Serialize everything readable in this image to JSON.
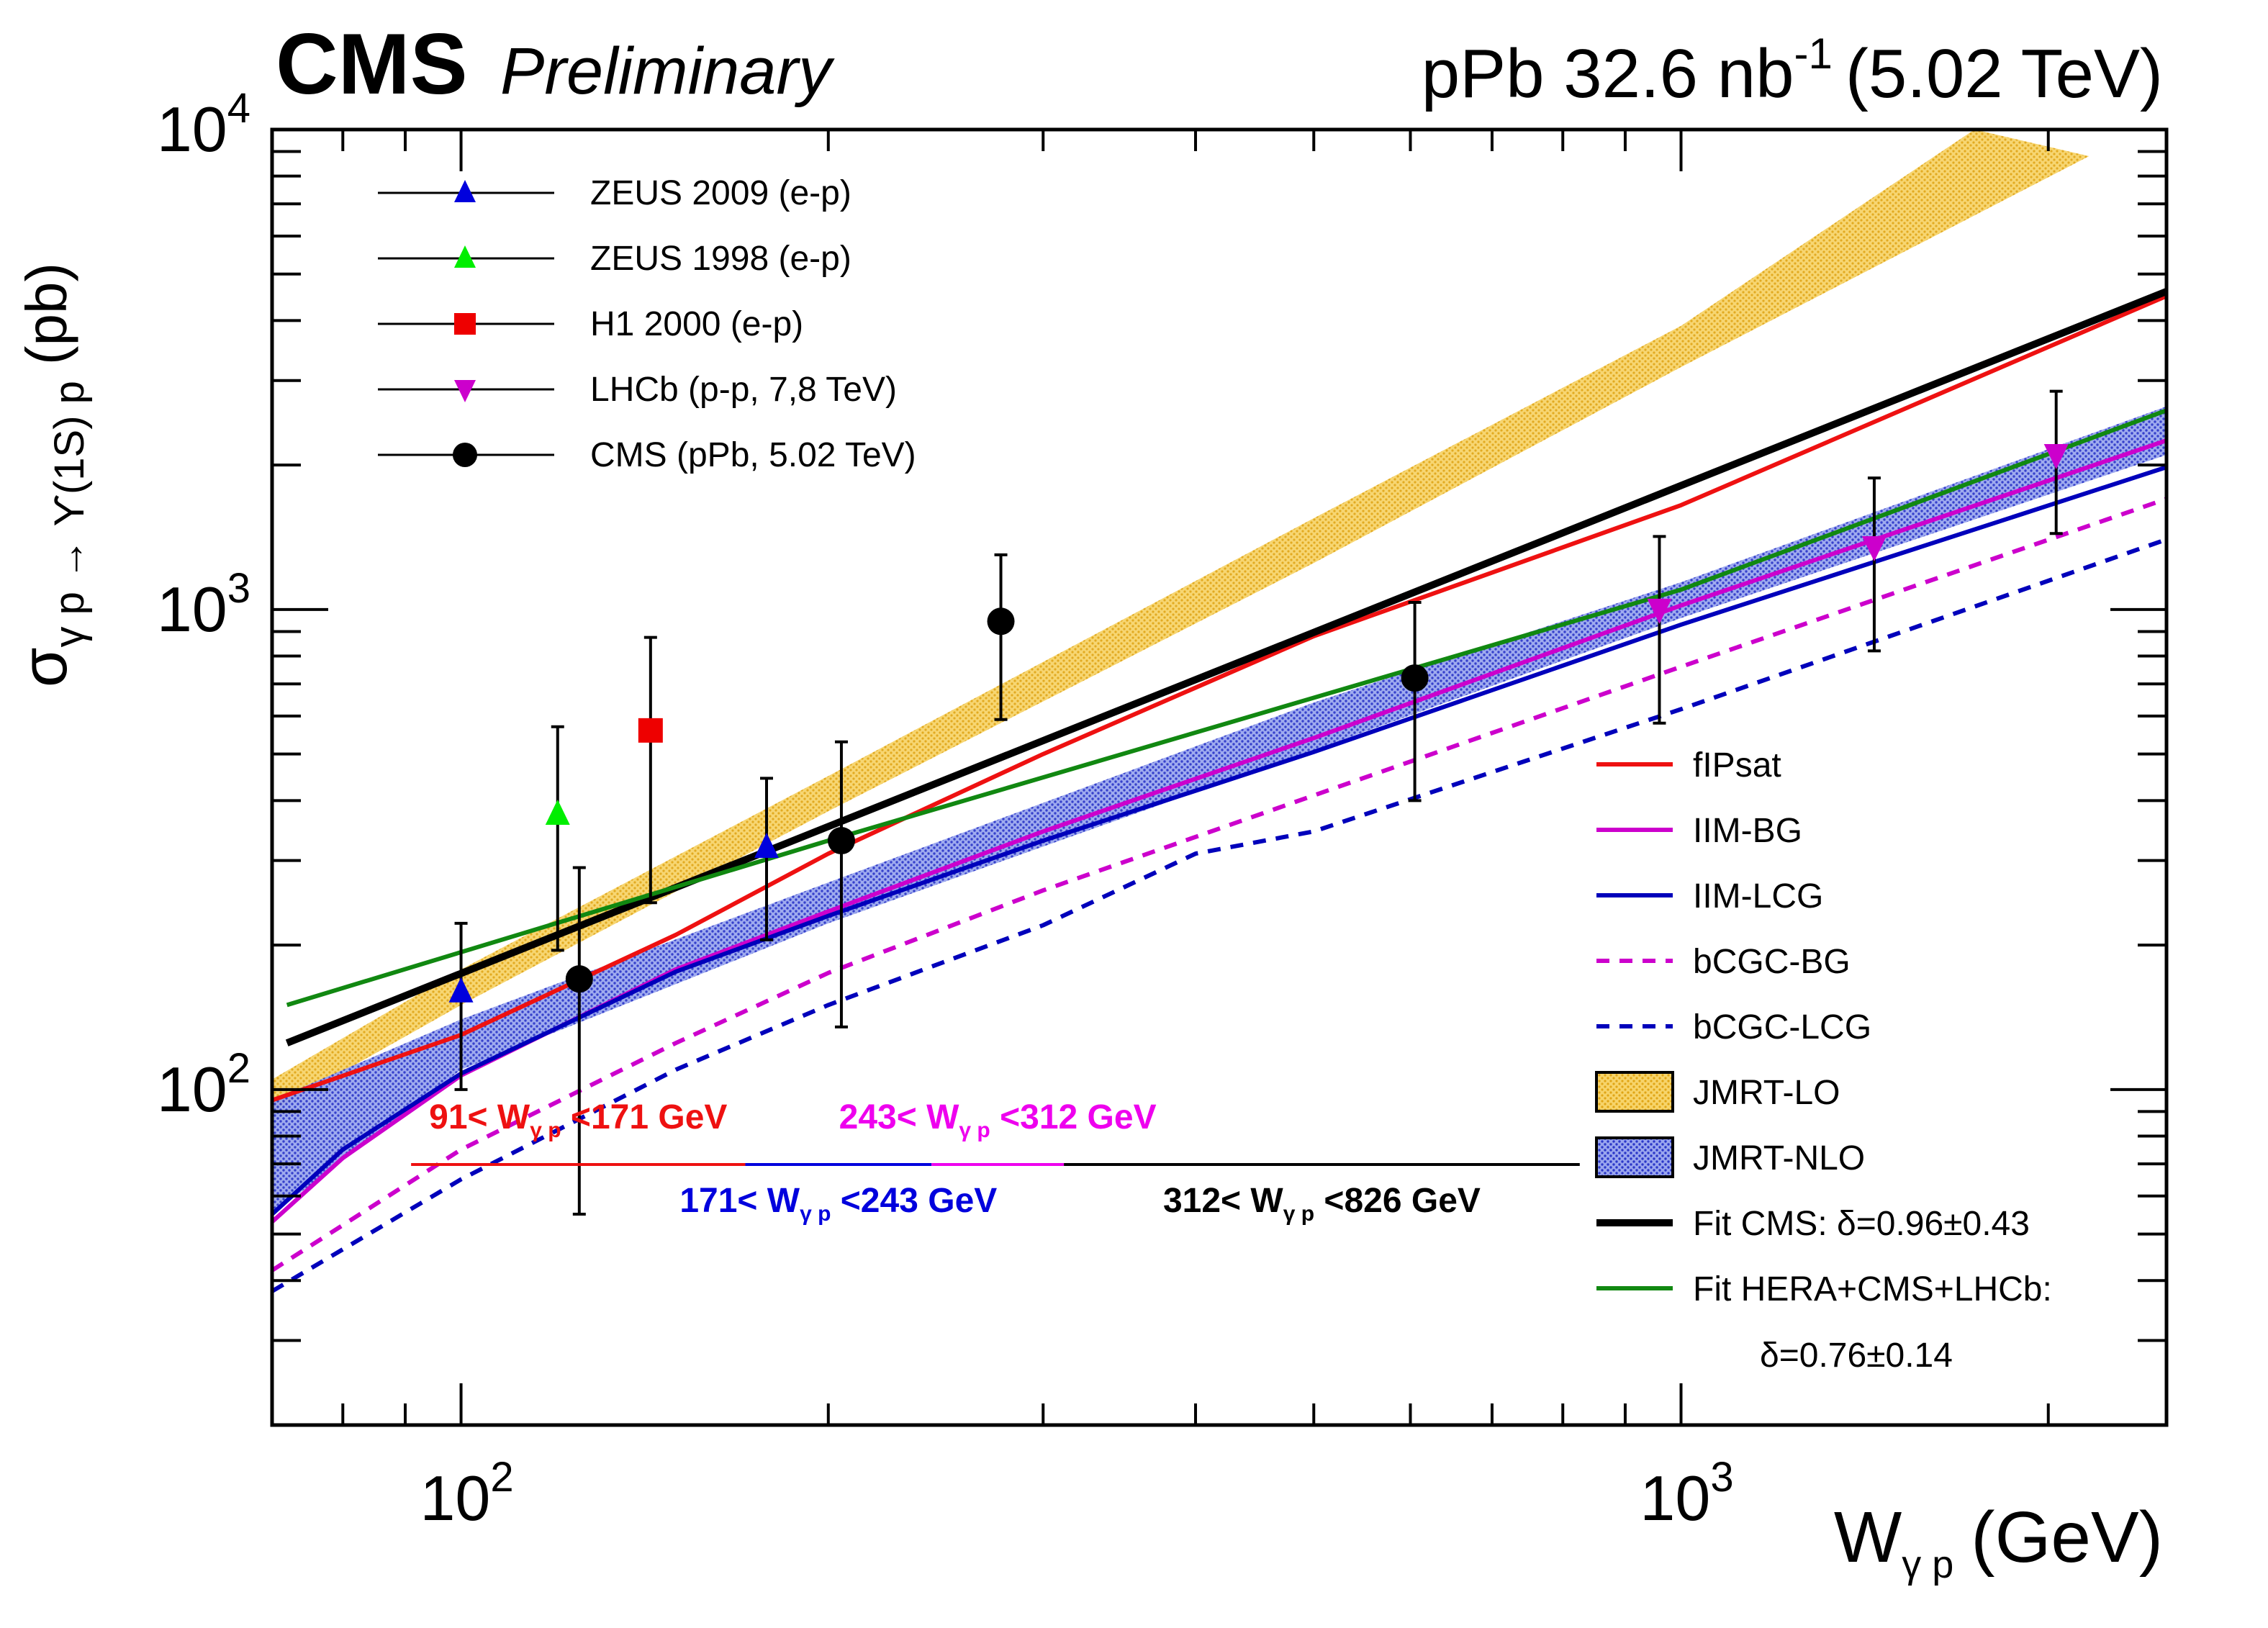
{
  "header": {
    "experiment": "CMS",
    "status": "Preliminary",
    "lumi_system": "pPb 32.6 nb",
    "lumi_exp": "-1",
    "energy": "(5.02 TeV)"
  },
  "chart_data": {
    "type": "scatter",
    "title": "CMS Preliminary",
    "xlabel": "W",
    "xlabel_sub": "γ p",
    "xlabel_unit": "(GeV)",
    "ylabel_main": "σ",
    "ylabel_sub": "γ p → ϒ(1S) p",
    "ylabel_unit": "(pb)",
    "xscale": "log",
    "yscale": "log",
    "xlim": [
      70,
      2500
    ],
    "ylim": [
      20,
      10000
    ],
    "x_tick_labels": [
      {
        "base": "10",
        "exp": "2",
        "value": 100
      },
      {
        "base": "10",
        "exp": "3",
        "value": 1000
      }
    ],
    "y_tick_labels": [
      {
        "base": "10",
        "exp": "2",
        "value": 100
      },
      {
        "base": "10",
        "exp": "3",
        "value": 1000
      },
      {
        "base": "10",
        "exp": "4",
        "value": 10000
      }
    ],
    "markers": [
      {
        "name": "ZEUS 2009 (e-p)",
        "shape": "triangle-up",
        "color": "#0000dd",
        "points": [
          {
            "x": 100,
            "y": 160,
            "lo": 100,
            "hi": 222
          },
          {
            "x": 178,
            "y": 320,
            "lo": 205,
            "hi": 445
          }
        ]
      },
      {
        "name": "ZEUS 1998 (e-p)",
        "shape": "triangle-up",
        "color": "#00ee00",
        "points": [
          {
            "x": 120,
            "y": 375,
            "lo": 195,
            "hi": 570
          }
        ]
      },
      {
        "name": "H1 2000 (e-p)",
        "shape": "square",
        "color": "#ee0000",
        "points": [
          {
            "x": 143,
            "y": 560,
            "lo": 245,
            "hi": 875
          }
        ]
      },
      {
        "name": "LHCb (p-p, 7,8 TeV)",
        "shape": "triangle-down",
        "color": "#cc00cc",
        "points": [
          {
            "x": 960,
            "y": 1000,
            "lo": 580,
            "hi": 1420
          },
          {
            "x": 1440,
            "y": 1350,
            "lo": 820,
            "hi": 1880
          },
          {
            "x": 2030,
            "y": 2100,
            "lo": 1440,
            "hi": 2850
          }
        ]
      },
      {
        "name": "CMS (pPb, 5.02 TeV)",
        "shape": "circle",
        "color": "#000000",
        "points": [
          {
            "x": 125,
            "y": 170,
            "lo": 55,
            "hi": 290
          },
          {
            "x": 205,
            "y": 330,
            "lo": 135,
            "hi": 530
          },
          {
            "x": 277,
            "y": 945,
            "lo": 590,
            "hi": 1300
          },
          {
            "x": 605,
            "y": 720,
            "lo": 400,
            "hi": 1035
          }
        ]
      }
    ],
    "curves": [
      {
        "name": "fIPsat",
        "color": "#ee1111",
        "dash": false,
        "width": 6,
        "points": [
          [
            70,
            95
          ],
          [
            100,
            130
          ],
          [
            150,
            210
          ],
          [
            200,
            310
          ],
          [
            300,
            500
          ],
          [
            500,
            880
          ],
          [
            1000,
            1650
          ],
          [
            2500,
            4500
          ]
        ]
      },
      {
        "name": "IIM-BG",
        "color": "#cc00cc",
        "dash": false,
        "width": 6,
        "points": [
          [
            70,
            53
          ],
          [
            80,
            72
          ],
          [
            100,
            107
          ],
          [
            150,
            178
          ],
          [
            200,
            235
          ],
          [
            300,
            345
          ],
          [
            500,
            540
          ],
          [
            1000,
            1020
          ],
          [
            2500,
            2250
          ]
        ]
      },
      {
        "name": "IIM-LCG",
        "color": "#0000bb",
        "dash": false,
        "width": 6,
        "points": [
          [
            70,
            55
          ],
          [
            80,
            75
          ],
          [
            100,
            108
          ],
          [
            150,
            176
          ],
          [
            200,
            230
          ],
          [
            300,
            330
          ],
          [
            500,
            505
          ],
          [
            1000,
            930
          ],
          [
            2500,
            1980
          ]
        ]
      },
      {
        "name": "bCGC-BG",
        "color": "#cc00cc",
        "dash": true,
        "width": 6,
        "points": [
          [
            70,
            42
          ],
          [
            100,
            75
          ],
          [
            150,
            125
          ],
          [
            200,
            175
          ],
          [
            300,
            260
          ],
          [
            500,
            410
          ],
          [
            1000,
            760
          ],
          [
            2500,
            1700
          ]
        ]
      },
      {
        "name": "bCGC-LCG",
        "color": "#0000bb",
        "dash": true,
        "width": 6,
        "points": [
          [
            70,
            38
          ],
          [
            100,
            65
          ],
          [
            150,
            110
          ],
          [
            200,
            150
          ],
          [
            300,
            220
          ],
          [
            400,
            310
          ],
          [
            500,
            345
          ],
          [
            1000,
            620
          ],
          [
            2500,
            1400
          ]
        ]
      },
      {
        "name": "Fit CMS: δ=0.96±0.43",
        "color": "#000000",
        "dash": false,
        "width": 10,
        "points": [
          [
            72,
            125
          ],
          [
            2500,
            4600
          ]
        ]
      },
      {
        "name": "Fit HERA+CMS+LHCb:",
        "color": "#118811",
        "dash": false,
        "width": 6,
        "points": [
          [
            72,
            150
          ],
          [
            200,
            330
          ],
          [
            1000,
            1100
          ],
          [
            2500,
            2600
          ]
        ]
      }
    ],
    "bands": [
      {
        "name": "JMRT-LO",
        "color": "#f0c030",
        "lower": [
          [
            70,
            90
          ],
          [
            100,
            150
          ],
          [
            200,
            380
          ],
          [
            500,
            1250
          ],
          [
            1000,
            3200
          ],
          [
            2160,
            8800
          ]
        ],
        "upper": [
          [
            70,
            105
          ],
          [
            100,
            178
          ],
          [
            200,
            450
          ],
          [
            500,
            1550
          ],
          [
            1000,
            3900
          ],
          [
            1740,
            10000
          ]
        ]
      },
      {
        "name": "JMRT-NLO",
        "color": "#4a5adc",
        "lower": [
          [
            70,
            55
          ],
          [
            100,
            110
          ],
          [
            200,
            222
          ],
          [
            500,
            510
          ],
          [
            1000,
            960
          ],
          [
            2500,
            2100
          ]
        ],
        "upper": [
          [
            70,
            95
          ],
          [
            100,
            140
          ],
          [
            200,
            270
          ],
          [
            500,
            640
          ],
          [
            1000,
            1140
          ],
          [
            2500,
            2650
          ]
        ]
      }
    ],
    "range_annotations": [
      {
        "name": "range-91-171",
        "prefix": "91< W",
        "sub": "γ p",
        "suffix": " <171 GeV",
        "color": "#ee1111",
        "x_from": 91,
        "x_to": 171,
        "label_row": "above"
      },
      {
        "name": "range-171-243",
        "prefix": "171< W",
        "sub": "γ p",
        "suffix": " <243 GeV",
        "color": "#0000dd",
        "x_from": 171,
        "x_to": 243,
        "label_row": "below"
      },
      {
        "name": "range-243-312",
        "prefix": "243< W",
        "sub": "γ p",
        "suffix": " <312 GeV",
        "color": "#ee00ee",
        "x_from": 243,
        "x_to": 312,
        "label_row": "above"
      },
      {
        "name": "range-312-826",
        "prefix": "312< W",
        "sub": "γ p",
        "suffix": " <826 GeV",
        "color": "#000000",
        "x_from": 312,
        "x_to": 826,
        "label_row": "below"
      }
    ],
    "legend_top_left": [
      "ZEUS 2009 (e-p)",
      "ZEUS 1998 (e-p)",
      "H1 2000 (e-p)",
      "LHCb (p-p, 7,8 TeV)",
      "CMS (pPb, 5.02 TeV)"
    ],
    "legend_right": [
      "fIPsat",
      "IIM-BG",
      "IIM-LCG",
      "bCGC-BG",
      "bCGC-LCG",
      "JMRT-LO",
      "JMRT-NLO",
      "Fit CMS: δ=0.96±0.43",
      "Fit HERA+CMS+LHCb:"
    ],
    "legend_extra_line": "δ=0.76±0.14",
    "colors": {
      "axis": "#000000",
      "background": "#ffffff"
    }
  }
}
